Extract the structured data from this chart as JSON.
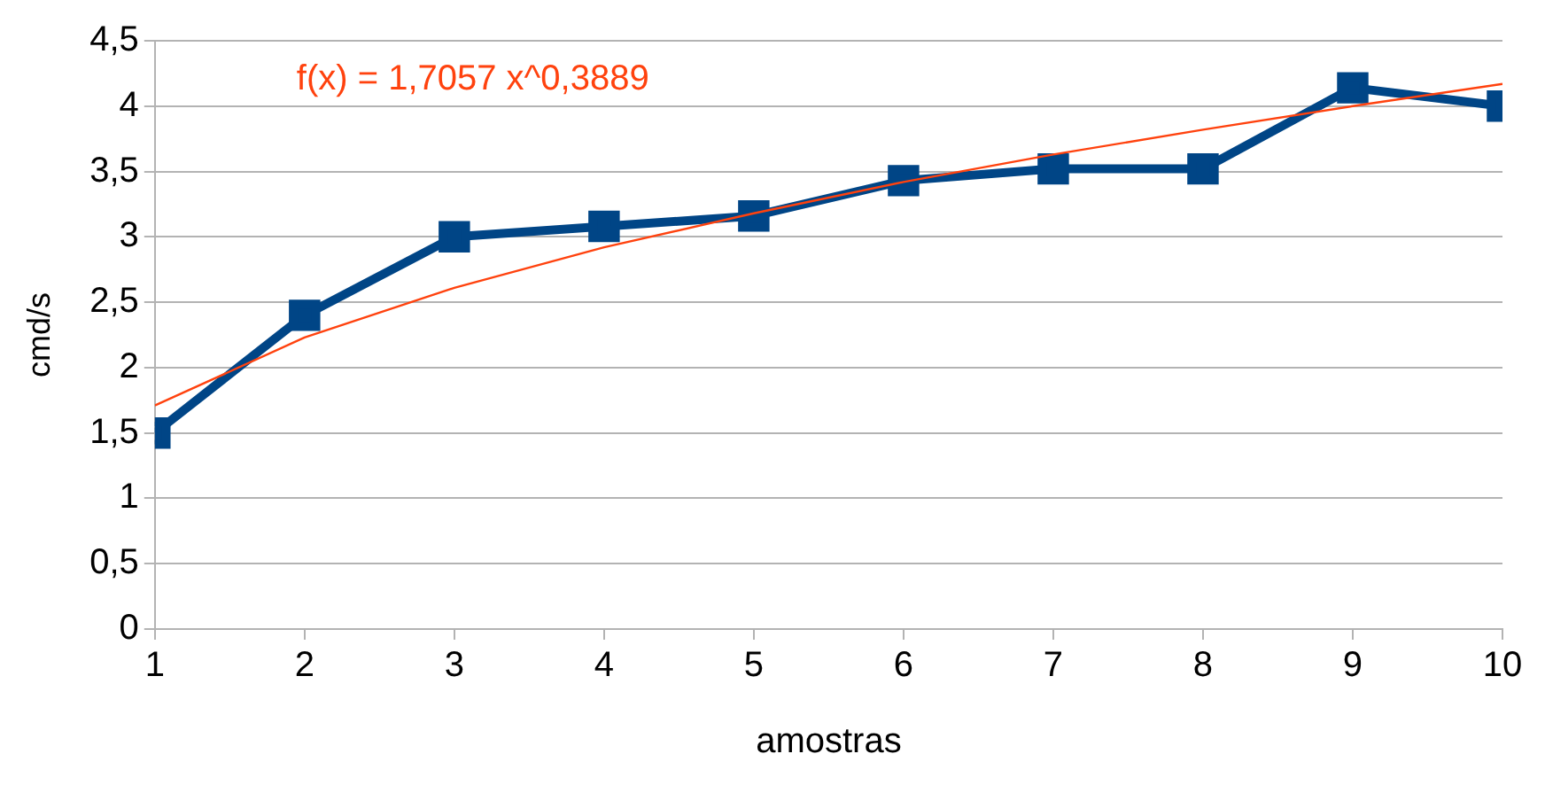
{
  "chart_data": {
    "type": "line",
    "xlabel": "amostras",
    "ylabel": "cmd/s",
    "annotations": [
      "f(x) = 1,7057 x^0,3889"
    ],
    "x": [
      1,
      2,
      3,
      4,
      5,
      6,
      7,
      8,
      9,
      10
    ],
    "xlim": [
      1,
      10
    ],
    "xticks": [
      1,
      2,
      3,
      4,
      5,
      6,
      7,
      8,
      9,
      10
    ],
    "ylim": [
      0,
      4.5
    ],
    "yticks": [
      0,
      {
        "value": 0.5,
        "label": "0,5"
      },
      1,
      {
        "value": 1.5,
        "label": "1,5"
      },
      2,
      {
        "value": 2.5,
        "label": "2,5"
      },
      3,
      {
        "value": 3.5,
        "label": "3,5"
      },
      4,
      {
        "value": 4.5,
        "label": "4,5"
      }
    ],
    "grid": "y",
    "legend": false,
    "marker": "square",
    "series": [
      {
        "color": "#004586",
        "values": [
          1.5,
          2.4,
          3.0,
          3.08,
          3.16,
          3.43,
          3.52,
          3.52,
          4.14,
          4.0
        ]
      },
      {
        "type": "line",
        "color": "#ff420e",
        "marker": "none",
        "x": [
          1,
          2,
          3,
          4,
          5,
          6,
          7,
          8,
          9,
          10
        ],
        "values": [
          1.71,
          2.23,
          2.61,
          2.92,
          3.18,
          3.42,
          3.63,
          3.82,
          4.0,
          4.17
        ]
      }
    ]
  }
}
